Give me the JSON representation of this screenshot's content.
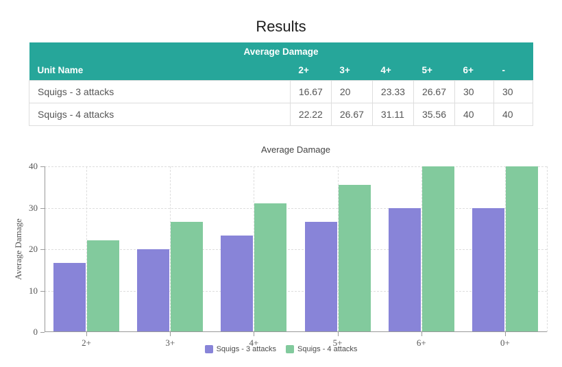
{
  "page": {
    "title": "Results"
  },
  "table": {
    "title": "Average Damage",
    "columns": [
      "Unit Name",
      "2+",
      "3+",
      "4+",
      "5+",
      "6+",
      "-"
    ],
    "rows": [
      {
        "name": "Squigs - 3 attacks",
        "values": [
          16.67,
          20,
          23.33,
          26.67,
          30,
          30
        ]
      },
      {
        "name": "Squigs - 4 attacks",
        "values": [
          22.22,
          26.67,
          31.11,
          35.56,
          40,
          40
        ]
      }
    ],
    "header_bg": "#26a69a",
    "header_text_color": "#ffffff"
  },
  "chart_data": {
    "type": "bar",
    "title": "Average Damage",
    "xlabel": "",
    "ylabel": "Average Damage",
    "categories": [
      "2+",
      "3+",
      "4+",
      "5+",
      "6+",
      "0+"
    ],
    "series": [
      {
        "name": "Squigs - 3 attacks",
        "color": "#8884d8",
        "values": [
          16.67,
          20,
          23.33,
          26.67,
          30,
          30
        ]
      },
      {
        "name": "Squigs - 4 attacks",
        "color": "#82ca9d",
        "values": [
          22.22,
          26.67,
          31.11,
          35.56,
          40,
          40
        ]
      }
    ],
    "ylim": [
      0,
      40
    ],
    "yticks": [
      0,
      10,
      20,
      30,
      40
    ],
    "grid": true,
    "grid_style": "dashed",
    "legend_position": "bottom"
  },
  "colors": {
    "axis_line": "#999999",
    "grid_line": "#dddddd",
    "tick_text": "#555555",
    "chart_title_text": "#424242",
    "legend_text": "#4a4a4a",
    "table_border": "#dddddd",
    "table_text": "#555555"
  }
}
